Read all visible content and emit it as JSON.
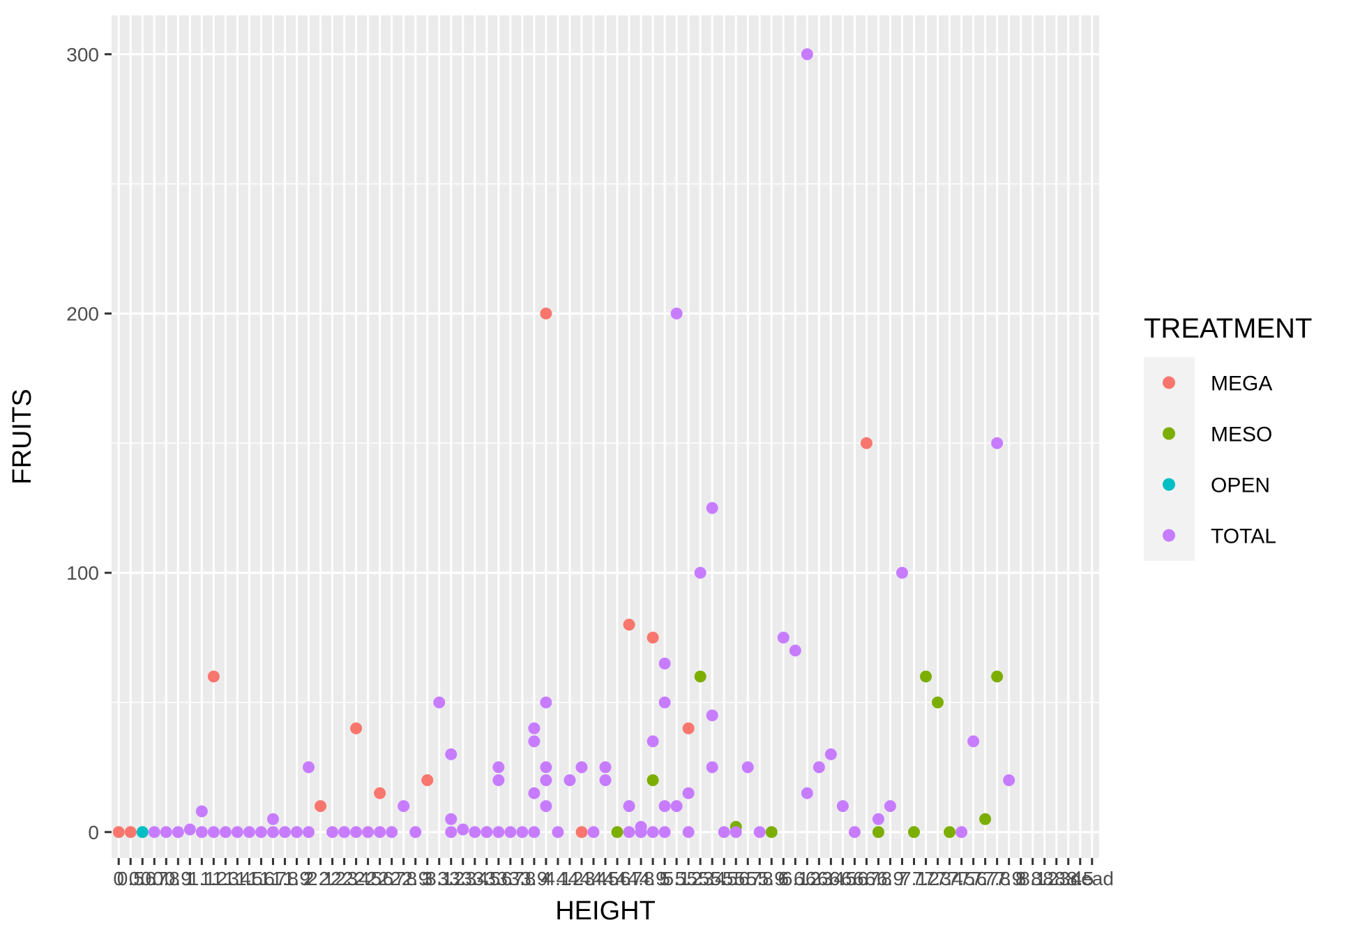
{
  "chart_data": {
    "type": "scatter",
    "xlabel": "HEIGHT",
    "ylabel": "FRUITS",
    "x_scale": "categorical",
    "ylim": [
      -10,
      315
    ],
    "y_ticks": [
      0,
      100,
      200,
      300
    ],
    "grid": true,
    "legend": {
      "title": "TREATMENT",
      "placement": "right"
    },
    "x_categories": [
      "0",
      "0.5",
      "0.6",
      "0.7",
      "0.8",
      "0.9",
      "1",
      "1.1",
      "1.2",
      "1.3",
      "1.4",
      "1.5",
      "1.6",
      "1.7",
      "1.8",
      "1.9",
      "2",
      "2.1",
      "2.2",
      "2.3",
      "2.4",
      "2.5",
      "2.6",
      "2.7",
      "2.8",
      "2.9",
      "3",
      "3.1",
      "3.2",
      "3.3",
      "3.4",
      "3.5",
      "3.6",
      "3.7",
      "3.8",
      "3.9",
      "4",
      "4.1",
      "4.2",
      "4.3",
      "4.4",
      "4.5",
      "4.6",
      "4.7",
      "4.8",
      "4.9",
      "5",
      "5.1",
      "5.2",
      "5.3",
      "5.4",
      "5.5",
      "5.6",
      "5.7",
      "5.8",
      "5.9",
      "6",
      "6.1",
      "6.2",
      "6.3",
      "6.4",
      "6.5",
      "6.6",
      "6.7",
      "6.8",
      "6.9",
      "7",
      "7.1",
      "7.2",
      "7.3",
      "7.4",
      "7.5",
      "7.6",
      "7.7",
      "7.8",
      "7.9",
      "8",
      "8.1",
      "8.2",
      "8.3",
      "8.4",
      "8.5",
      "dead"
    ],
    "series": [
      {
        "name": "MEGA",
        "color": "#F8766D",
        "points": [
          [
            0,
            0
          ],
          [
            1,
            0
          ],
          [
            8,
            60
          ],
          [
            17,
            10
          ],
          [
            20,
            40
          ],
          [
            22,
            15
          ],
          [
            26,
            20
          ],
          [
            36,
            200
          ],
          [
            39,
            0
          ],
          [
            43,
            80
          ],
          [
            45,
            75
          ],
          [
            48,
            40
          ],
          [
            63,
            150
          ]
        ]
      },
      {
        "name": "MESO",
        "color": "#7CAE00",
        "points": [
          [
            42,
            0
          ],
          [
            45,
            20
          ],
          [
            49,
            60
          ],
          [
            52,
            2
          ],
          [
            55,
            0
          ],
          [
            64,
            0
          ],
          [
            67,
            0
          ],
          [
            68,
            60
          ],
          [
            69,
            50
          ],
          [
            70,
            0
          ],
          [
            73,
            5
          ],
          [
            74,
            60
          ]
        ]
      },
      {
        "name": "OPEN",
        "color": "#00BFC4",
        "points": [
          [
            2,
            0
          ]
        ]
      },
      {
        "name": "TOTAL",
        "color": "#C77CFF",
        "points": [
          [
            3,
            0
          ],
          [
            4,
            0
          ],
          [
            5,
            0
          ],
          [
            6,
            1
          ],
          [
            7,
            8
          ],
          [
            7,
            0
          ],
          [
            8,
            0
          ],
          [
            9,
            0
          ],
          [
            10,
            0
          ],
          [
            11,
            0
          ],
          [
            12,
            0
          ],
          [
            13,
            5
          ],
          [
            13,
            0
          ],
          [
            14,
            0
          ],
          [
            15,
            0
          ],
          [
            16,
            25
          ],
          [
            16,
            0
          ],
          [
            18,
            0
          ],
          [
            19,
            0
          ],
          [
            20,
            0
          ],
          [
            21,
            0
          ],
          [
            22,
            0
          ],
          [
            23,
            0
          ],
          [
            24,
            10
          ],
          [
            25,
            0
          ],
          [
            27,
            50
          ],
          [
            28,
            30
          ],
          [
            28,
            5
          ],
          [
            28,
            0
          ],
          [
            29,
            1
          ],
          [
            30,
            0
          ],
          [
            31,
            0
          ],
          [
            32,
            25
          ],
          [
            32,
            20
          ],
          [
            32,
            0
          ],
          [
            33,
            0
          ],
          [
            34,
            0
          ],
          [
            35,
            40
          ],
          [
            35,
            35
          ],
          [
            35,
            15
          ],
          [
            35,
            0
          ],
          [
            36,
            50
          ],
          [
            36,
            25
          ],
          [
            36,
            20
          ],
          [
            36,
            10
          ],
          [
            37,
            0
          ],
          [
            38,
            20
          ],
          [
            39,
            25
          ],
          [
            40,
            0
          ],
          [
            41,
            25
          ],
          [
            41,
            20
          ],
          [
            43,
            10
          ],
          [
            43,
            0
          ],
          [
            44,
            2
          ],
          [
            44,
            0
          ],
          [
            45,
            35
          ],
          [
            45,
            0
          ],
          [
            46,
            65
          ],
          [
            46,
            50
          ],
          [
            46,
            10
          ],
          [
            46,
            0
          ],
          [
            47,
            200
          ],
          [
            47,
            10
          ],
          [
            48,
            15
          ],
          [
            48,
            0
          ],
          [
            49,
            100
          ],
          [
            50,
            125
          ],
          [
            50,
            45
          ],
          [
            50,
            25
          ],
          [
            51,
            0
          ],
          [
            52,
            0
          ],
          [
            53,
            25
          ],
          [
            54,
            0
          ],
          [
            56,
            75
          ],
          [
            57,
            70
          ],
          [
            58,
            300
          ],
          [
            58,
            15
          ],
          [
            59,
            25
          ],
          [
            60,
            30
          ],
          [
            61,
            10
          ],
          [
            62,
            0
          ],
          [
            64,
            5
          ],
          [
            65,
            10
          ],
          [
            66,
            100
          ],
          [
            71,
            0
          ],
          [
            72,
            35
          ],
          [
            74,
            150
          ],
          [
            75,
            20
          ]
        ]
      }
    ]
  }
}
